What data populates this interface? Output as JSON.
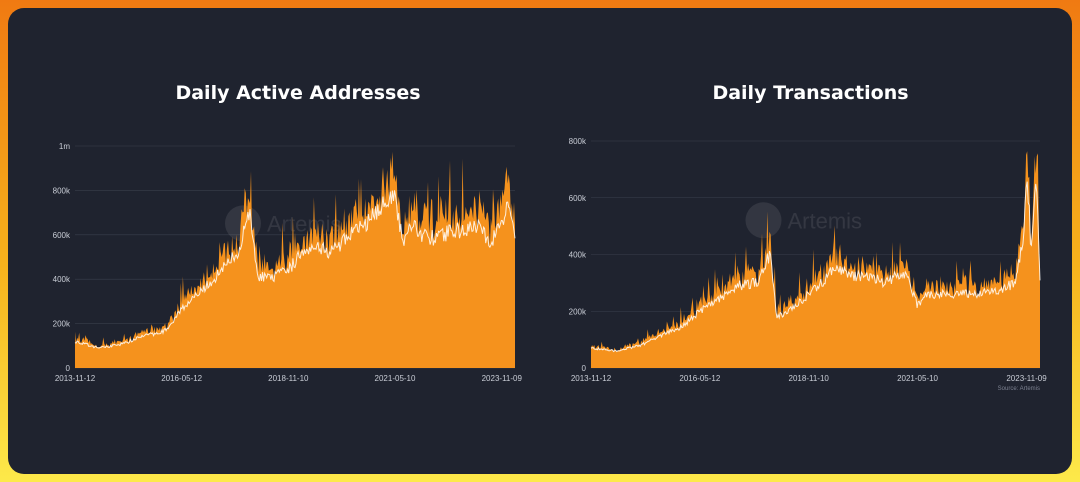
{
  "chart_data": [
    {
      "type": "area",
      "title": "Daily Active Addresses",
      "watermark": "Artemis",
      "x_ticks": [
        "2013-11-12",
        "2016-05-12",
        "2018-11-10",
        "2021-05-10",
        "2023-11-09"
      ],
      "y_ticks": [
        "0",
        "200k",
        "400k",
        "600k",
        "800k",
        "1m"
      ],
      "ylim": [
        0,
        1000000
      ],
      "x_range": [
        "2013-11-12",
        "2024-03-01"
      ],
      "colors": {
        "fill": "#f5921d",
        "line": "#ffffff",
        "grid": "#3a3f4c"
      },
      "x": [
        "2013-11-12",
        "2014-06-01",
        "2015-01-01",
        "2015-06-01",
        "2016-01-01",
        "2016-05-12",
        "2016-10-01",
        "2017-04-01",
        "2017-09-01",
        "2017-12-20",
        "2018-02-15",
        "2018-06-01",
        "2018-11-10",
        "2019-03-01",
        "2019-07-01",
        "2019-11-01",
        "2020-03-15",
        "2020-08-01",
        "2020-12-15",
        "2021-02-15",
        "2021-05-10",
        "2021-07-15",
        "2021-10-01",
        "2022-01-01",
        "2022-05-01",
        "2022-09-01",
        "2023-01-01",
        "2023-05-01",
        "2023-08-01",
        "2023-11-09",
        "2024-01-15",
        "2024-03-01"
      ],
      "series": [
        {
          "values": [
            120000,
            90000,
            110000,
            140000,
            170000,
            270000,
            330000,
            430000,
            520000,
            700000,
            420000,
            400000,
            440000,
            520000,
            560000,
            520000,
            580000,
            640000,
            700000,
            760000,
            780000,
            560000,
            660000,
            600000,
            580000,
            620000,
            620000,
            640000,
            560000,
            650000,
            760000,
            600000
          ]
        }
      ]
    },
    {
      "type": "area",
      "title": "Daily Transactions",
      "watermark": "Artemis",
      "source": "Source: Artemis",
      "x_ticks": [
        "2013-11-12",
        "2016-05-12",
        "2018-11-10",
        "2021-05-10",
        "2023-11-09"
      ],
      "y_ticks": [
        "0",
        "200k",
        "400k",
        "600k",
        "800k"
      ],
      "ylim": [
        0,
        800000
      ],
      "x_range": [
        "2013-11-12",
        "2024-03-01"
      ],
      "colors": {
        "fill": "#f5921d",
        "line": "#ffffff",
        "grid": "#3a3f4c"
      },
      "x": [
        "2013-11-12",
        "2014-06-01",
        "2015-01-01",
        "2015-06-01",
        "2016-01-01",
        "2016-05-12",
        "2016-10-01",
        "2017-04-01",
        "2017-09-01",
        "2017-12-20",
        "2018-02-15",
        "2018-06-01",
        "2018-11-10",
        "2019-03-01",
        "2019-07-01",
        "2019-11-01",
        "2020-03-15",
        "2020-08-01",
        "2020-12-15",
        "2021-02-15",
        "2021-05-10",
        "2021-07-15",
        "2021-10-01",
        "2022-01-01",
        "2022-05-01",
        "2022-09-01",
        "2023-01-01",
        "2023-05-01",
        "2023-08-01",
        "2023-10-15",
        "2023-11-09",
        "2023-12-01",
        "2023-12-15",
        "2024-01-10",
        "2024-02-01",
        "2024-03-01"
      ],
      "series": [
        {
          "values": [
            70000,
            60000,
            80000,
            110000,
            150000,
            200000,
            240000,
            290000,
            300000,
            400000,
            180000,
            200000,
            260000,
            300000,
            360000,
            320000,
            330000,
            300000,
            330000,
            320000,
            220000,
            260000,
            260000,
            260000,
            260000,
            260000,
            270000,
            280000,
            300000,
            450000,
            640000,
            560000,
            380000,
            600000,
            650000,
            300000
          ]
        }
      ]
    }
  ]
}
